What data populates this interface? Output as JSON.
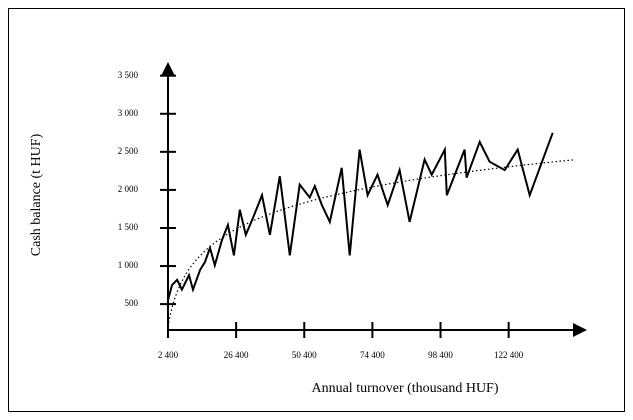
{
  "chart_data": {
    "type": "line",
    "x_label": "Annual turnover (thousand HUF)",
    "y_label": "Cash balance (t HUF)",
    "xlim": [
      2400,
      150000
    ],
    "ylim": [
      160,
      3680
    ],
    "xticks": [
      {
        "value": 2400,
        "label": "2 400"
      },
      {
        "value": 26400,
        "label": "26 400"
      },
      {
        "value": 50400,
        "label": "50 400"
      },
      {
        "value": 74400,
        "label": "74 400"
      },
      {
        "value": 98400,
        "label": "98 400"
      },
      {
        "value": 122400,
        "label": "122 400"
      }
    ],
    "yticks": [
      500,
      {
        "value": 1000,
        "label": "1 000"
      },
      {
        "value": 1500,
        "label": "1 500"
      },
      {
        "value": 2000,
        "label": "2 000"
      },
      {
        "value": 2500,
        "label": "2 500"
      },
      {
        "value": 3000,
        "label": "3 000"
      },
      {
        "value": 3500,
        "label": "3 500"
      }
    ],
    "grid": false,
    "trendline": "logarithmic",
    "series": [
      {
        "color": "#000000",
        "x": [
          2400,
          3800,
          5600,
          7300,
          9800,
          11200,
          13700,
          15400,
          17200,
          18900,
          21400,
          23500,
          25600,
          27700,
          29800,
          32300,
          35500,
          38300,
          41800,
          45300,
          48800,
          52300,
          54100,
          56600,
          59400,
          63600,
          66400,
          69900,
          72700,
          76200,
          79800,
          84000,
          87500,
          92800,
          95300,
          99900,
          100600,
          106900,
          107600,
          112200,
          115700,
          121000,
          125600,
          129800,
          137900
        ],
        "values": [
          550,
          750,
          820,
          690,
          880,
          690,
          950,
          1050,
          1240,
          1010,
          1340,
          1540,
          1140,
          1740,
          1410,
          1630,
          1930,
          1410,
          2180,
          1140,
          2070,
          1900,
          2050,
          1800,
          1580,
          2290,
          1140,
          2530,
          1930,
          2200,
          1800,
          2260,
          1580,
          2400,
          2200,
          2530,
          1930,
          2530,
          2160,
          2630,
          2370,
          2260,
          2530,
          1930,
          2750
        ]
      }
    ]
  }
}
